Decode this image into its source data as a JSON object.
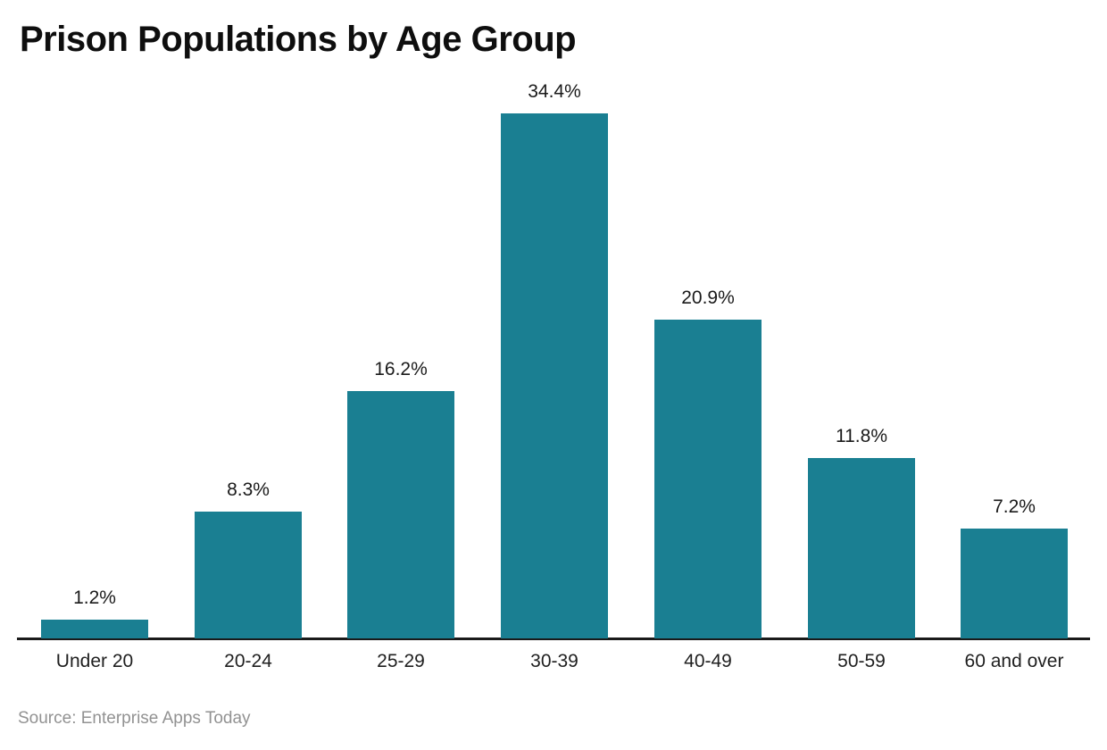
{
  "chart": {
    "title": "Prison Populations by Age Group",
    "source": "Source: Enterprise Apps Today"
  },
  "chart_data": {
    "type": "bar",
    "title": "Prison Populations by Age Group",
    "categories": [
      "Under 20",
      "20-24",
      "25-29",
      "30-39",
      "40-49",
      "50-59",
      "60 and over"
    ],
    "values": [
      1.2,
      8.3,
      16.2,
      34.4,
      20.9,
      11.8,
      7.2
    ],
    "value_labels": [
      "1.2%",
      "8.3%",
      "16.2%",
      "34.4%",
      "20.9%",
      "11.8%",
      "7.2%"
    ],
    "xlabel": "",
    "ylabel": "",
    "ylim": [
      0,
      36
    ],
    "grid": false,
    "legend": false,
    "annotations": [
      "Source: Enterprise Apps Today"
    ],
    "colors": {
      "bar": "#1A7F92",
      "axis": "#1A1A1A",
      "value_label": "#1A1A1A",
      "category_label": "#1F1F1F",
      "title": "#0E0E0E",
      "source": "#929292",
      "background": "#FFFFFF"
    }
  }
}
